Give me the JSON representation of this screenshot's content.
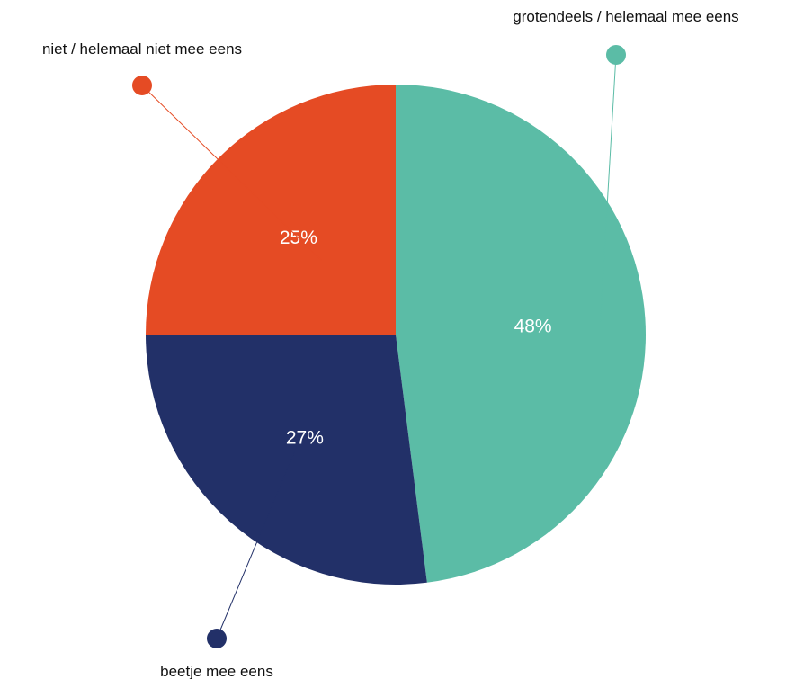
{
  "chart_data": {
    "type": "pie",
    "slices": [
      {
        "label": "grotendeels / helemaal mee eens",
        "value": 48,
        "value_label": "48%",
        "color": "#5bbca6"
      },
      {
        "label": "beetje mee eens",
        "value": 27,
        "value_label": "27%",
        "color": "#223068"
      },
      {
        "label": "niet / helemaal niet mee eens",
        "value": 25,
        "value_label": "25%",
        "color": "#e54b24"
      }
    ],
    "start": "12 o'clock",
    "direction": "clockwise",
    "legend": "callouts"
  }
}
